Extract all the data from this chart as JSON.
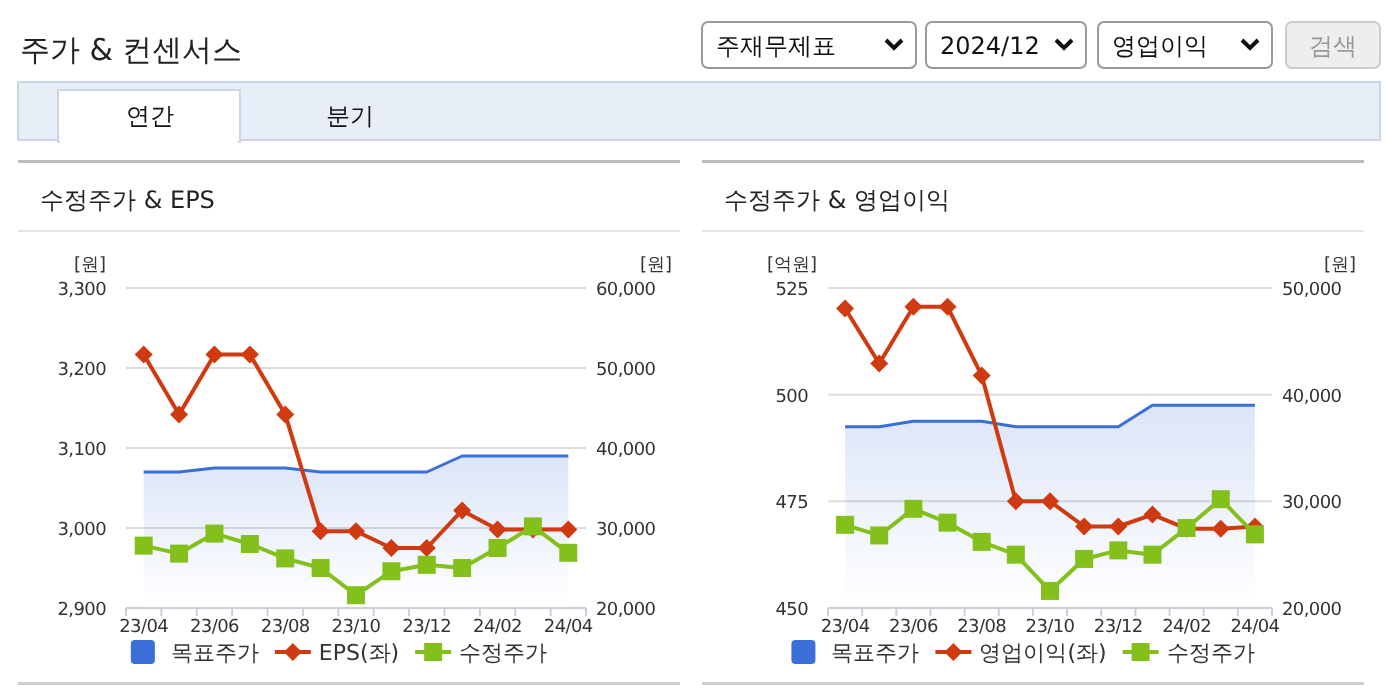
{
  "chart_data": [
    {
      "type": "other",
      "title": "주가 & 컨센서스",
      "annotations": [
        "주재무제표",
        "2024/12",
        "영업이익",
        "검색",
        "연간",
        "분기"
      ]
    },
    {
      "type": "line",
      "title": "수정주가 & EPS",
      "ylabel": "[원]",
      "y2label": "[원]",
      "categories": [
        "23/04",
        null,
        "23/06",
        null,
        "23/08",
        null,
        "23/10",
        null,
        "23/12",
        null,
        "24/02",
        null,
        "24/04"
      ],
      "ylim": [
        2900,
        3300
      ],
      "yticks": [
        {
          "value": 2900,
          "label": "2,900"
        },
        {
          "value": 3000,
          "label": "3,000"
        },
        {
          "value": 3100,
          "label": "3,100"
        },
        {
          "value": 3200,
          "label": "3,200"
        },
        {
          "value": 3300,
          "label": "3,300"
        }
      ],
      "y2lim": [
        20000,
        60000
      ],
      "y2ticks": [
        {
          "value": 20000,
          "label": "20,000"
        },
        {
          "value": 30000,
          "label": "30,000"
        },
        {
          "value": 40000,
          "label": "40,000"
        },
        {
          "value": 50000,
          "label": "50,000"
        },
        {
          "value": 60000,
          "label": "60,000"
        }
      ],
      "grid": "y",
      "legend": "bottom",
      "series": [
        {
          "name": "목표주가",
          "type": "area",
          "axis": "y2",
          "color": "#3b6fd8",
          "values": [
            37000,
            37000,
            37500,
            37500,
            37500,
            37000,
            37000,
            37000,
            37000,
            39000,
            39000,
            39000,
            39000
          ]
        },
        {
          "name": "EPS(좌)",
          "type": "line",
          "axis": "y",
          "color": "#d03a10",
          "marker": "diamond",
          "values": [
            3217,
            3142,
            3217,
            3217,
            3142,
            2996,
            2996,
            2975,
            2975,
            3022,
            2998,
            2998,
            2998
          ]
        },
        {
          "name": "수정주가",
          "type": "line",
          "axis": "y2",
          "color": "#84c01c",
          "marker": "square",
          "values": [
            27800,
            26800,
            29300,
            28000,
            26200,
            25000,
            21600,
            24600,
            25400,
            25000,
            27500,
            30200,
            26900
          ]
        }
      ]
    },
    {
      "type": "line",
      "title": "수정주가 & 영업이익",
      "ylabel": "[억원]",
      "y2label": "[원]",
      "categories": [
        "23/04",
        null,
        "23/06",
        null,
        "23/08",
        null,
        "23/10",
        null,
        "23/12",
        null,
        "24/02",
        null,
        "24/04"
      ],
      "ylim": [
        450,
        525
      ],
      "yticks": [
        450,
        475,
        500,
        525
      ],
      "y2lim": [
        20000,
        50000
      ],
      "y2ticks": [
        {
          "value": 20000,
          "label": "20,000"
        },
        {
          "value": 30000,
          "label": "30,000"
        },
        {
          "value": 40000,
          "label": "40,000"
        },
        {
          "value": 50000,
          "label": "50,000"
        }
      ],
      "grid": "y",
      "legend": "bottom",
      "series": [
        {
          "name": "목표주가",
          "type": "area",
          "axis": "y2",
          "color": "#3b6fd8",
          "values": [
            37000,
            37000,
            37500,
            37500,
            37500,
            37000,
            37000,
            37000,
            37000,
            39000,
            39000,
            39000,
            39000
          ]
        },
        {
          "name": "영업이익(좌)",
          "type": "line",
          "axis": "y",
          "color": "#d03a10",
          "marker": "diamond",
          "values": [
            520.2,
            507.3,
            520.6,
            520.6,
            504.5,
            475,
            475,
            469.1,
            469.1,
            471.9,
            468.6,
            468.6,
            469.1
          ]
        },
        {
          "name": "수정주가",
          "type": "line",
          "axis": "y2",
          "color": "#84c01c",
          "marker": "square",
          "values": [
            27800,
            26800,
            29300,
            28000,
            26200,
            25000,
            21600,
            24600,
            25400,
            25000,
            27500,
            30200,
            26900
          ]
        }
      ]
    }
  ]
}
